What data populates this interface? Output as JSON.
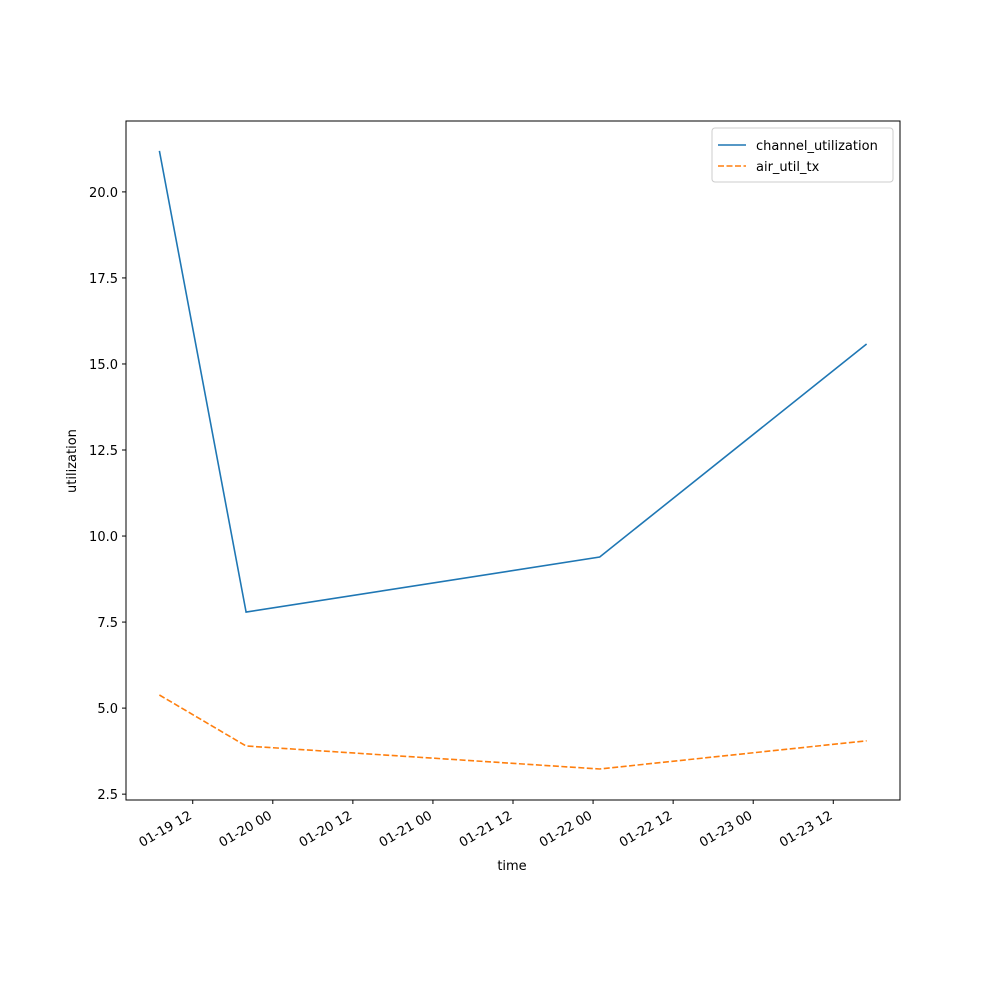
{
  "chart_data": {
    "type": "line",
    "x_label": "time",
    "y_label": "utilization",
    "x": [
      "01-19 07",
      "01-19 20",
      "01-22 01",
      "01-23 17"
    ],
    "series": [
      {
        "name": "channel_utilization",
        "color": "#1f77b4",
        "linestyle": "solid",
        "values": [
          21.19,
          7.79,
          9.39,
          15.58
        ]
      },
      {
        "name": "air_util_tx",
        "color": "#ff7f0e",
        "linestyle": "dashed",
        "values": [
          5.38,
          3.9,
          3.23,
          4.05
        ]
      }
    ],
    "xlim": [
      "01-19 02",
      "01-23 22"
    ],
    "xticks": [
      "01-19 12",
      "01-20 00",
      "01-20 12",
      "01-21 00",
      "01-21 12",
      "01-22 00",
      "01-22 12",
      "01-23 00",
      "01-23 12"
    ],
    "ylim": [
      2.33,
      22.06
    ],
    "yticks": [
      2.5,
      {
        "value": 5,
        "label": "5.0"
      },
      7.5,
      {
        "value": 10,
        "label": "10.0"
      },
      12.5,
      {
        "value": 15,
        "label": "15.0"
      },
      17.5,
      {
        "value": 20,
        "label": "20.0"
      }
    ],
    "legend": "upper right",
    "grid": false
  }
}
